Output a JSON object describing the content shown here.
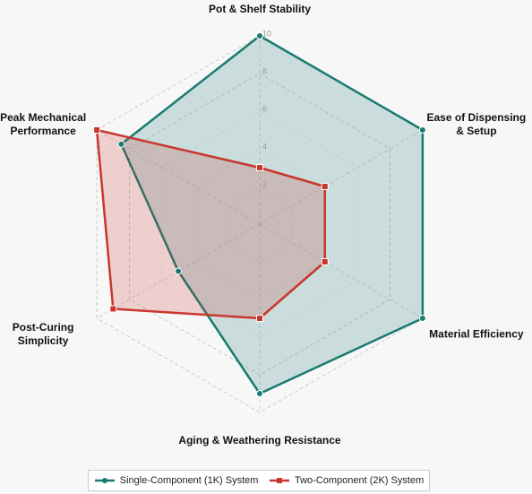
{
  "chart_data": {
    "type": "radar",
    "categories": [
      "Pot & Shelf Stability",
      "Ease of Dispensing & Setup",
      "Material Efficiency",
      "Aging & Weathering Resistance",
      "Post-Curing Simplicity",
      "Peak Mechanical Performance"
    ],
    "series": [
      {
        "name": "Single-Component (1K) System",
        "color": "#1a7a72",
        "values": [
          10,
          10,
          10,
          9,
          5,
          8.5
        ]
      },
      {
        "name": "Two-Component (2K) System",
        "color": "#c8372d",
        "values": [
          3,
          4,
          4,
          5,
          9,
          10
        ]
      }
    ],
    "rlim": [
      0,
      10
    ],
    "rticks": [
      2,
      4,
      6,
      8,
      10
    ],
    "grid": true,
    "legend": "bottom"
  }
}
